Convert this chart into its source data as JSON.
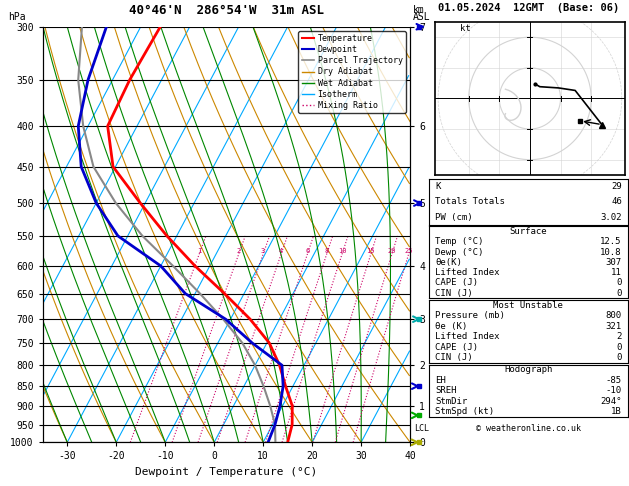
{
  "title_left": "40°46'N  286°54'W  31m ASL",
  "title_date": "01.05.2024  12GMT  (Base: 06)",
  "xlabel": "Dewpoint / Temperature (°C)",
  "ylabel_left": "hPa",
  "pressure_levels": [
    300,
    350,
    400,
    450,
    500,
    550,
    600,
    650,
    700,
    750,
    800,
    850,
    900,
    950,
    1000
  ],
  "temp_xlim": [
    -35,
    40
  ],
  "mixing_ratio_labels": [
    1,
    2,
    3,
    4,
    6,
    8,
    10,
    15,
    20,
    25
  ],
  "temp_profile_temp": [
    15.0,
    14.0,
    12.0,
    8.5,
    5.0,
    0.5,
    -6.0,
    -14.0,
    -23.0,
    -32.0,
    -41.0,
    -50.5,
    -56.0,
    -56.5,
    -56.0
  ],
  "temp_profile_pres": [
    1000,
    950,
    900,
    850,
    800,
    750,
    700,
    650,
    600,
    550,
    500,
    450,
    400,
    350,
    300
  ],
  "dewp_profile_temp": [
    11.0,
    10.5,
    9.5,
    8.0,
    5.5,
    -3.0,
    -11.0,
    -22.0,
    -30.0,
    -42.0,
    -50.0,
    -57.0,
    -62.0,
    -65.0,
    -67.0
  ],
  "dewp_profile_pres": [
    1000,
    950,
    900,
    850,
    800,
    750,
    700,
    650,
    600,
    550,
    500,
    450,
    400,
    350,
    300
  ],
  "parcel_temp": [
    12.5,
    10.5,
    7.5,
    4.0,
    0.0,
    -5.0,
    -11.5,
    -19.0,
    -27.5,
    -37.0,
    -46.0,
    -54.5,
    -61.0,
    -67.0,
    -72.0
  ],
  "parcel_pres": [
    1000,
    950,
    900,
    850,
    800,
    750,
    700,
    650,
    600,
    550,
    500,
    450,
    400,
    350,
    300
  ],
  "color_temp": "#ff0000",
  "color_dewp": "#0000cc",
  "color_parcel": "#888888",
  "color_dry_adiabat": "#cc8800",
  "color_wet_adiabat": "#008800",
  "color_isotherm": "#00aaff",
  "color_mixing": "#cc0066",
  "surface_title": "Surface",
  "surface_lines": [
    [
      "Temp (°C)",
      "12.5"
    ],
    [
      "Dewp (°C)",
      "10.8"
    ],
    [
      "θe(K)",
      "307"
    ],
    [
      "Lifted Index",
      "11"
    ],
    [
      "CAPE (J)",
      "0"
    ],
    [
      "CIN (J)",
      "0"
    ]
  ],
  "mu_title": "Most Unstable",
  "mu_lines": [
    [
      "Pressure (mb)",
      "800"
    ],
    [
      "θe (K)",
      "321"
    ],
    [
      "Lifted Index",
      "2"
    ],
    [
      "CAPE (J)",
      "0"
    ],
    [
      "CIN (J)",
      "0"
    ]
  ],
  "hodo_title": "Hodograph",
  "hodo_lines": [
    [
      "EH",
      "-85"
    ],
    [
      "SREH",
      "-10"
    ],
    [
      "StmDir",
      "294°"
    ],
    [
      "StmSpd (kt)",
      "1B"
    ]
  ],
  "kt_lines": [
    [
      "K",
      "29"
    ],
    [
      "Totals Totals",
      "46"
    ],
    [
      "PW (cm)",
      "3.02"
    ]
  ],
  "lcl_label": "LCL",
  "lcl_pressure": 960,
  "km_pressures": [
    1000,
    900,
    800,
    700,
    600,
    500,
    400,
    300
  ],
  "km_labels": [
    "0",
    "1",
    "2",
    "3",
    "4",
    "5",
    "6",
    "7"
  ],
  "wind_data": [
    {
      "p": 300,
      "spd": 30,
      "dir": 290,
      "color": "#0000cc"
    },
    {
      "p": 500,
      "spd": 15,
      "dir": 260,
      "color": "#0000cc"
    },
    {
      "p": 700,
      "spd": 10,
      "dir": 250,
      "color": "#00aaaa"
    },
    {
      "p": 850,
      "spd": 5,
      "dir": 220,
      "color": "#0000cc"
    },
    {
      "p": 925,
      "spd": 5,
      "dir": 210,
      "color": "#00aa00"
    },
    {
      "p": 1000,
      "spd": 5,
      "dir": 200,
      "color": "#aaaa00"
    }
  ],
  "skew_amount": 45
}
